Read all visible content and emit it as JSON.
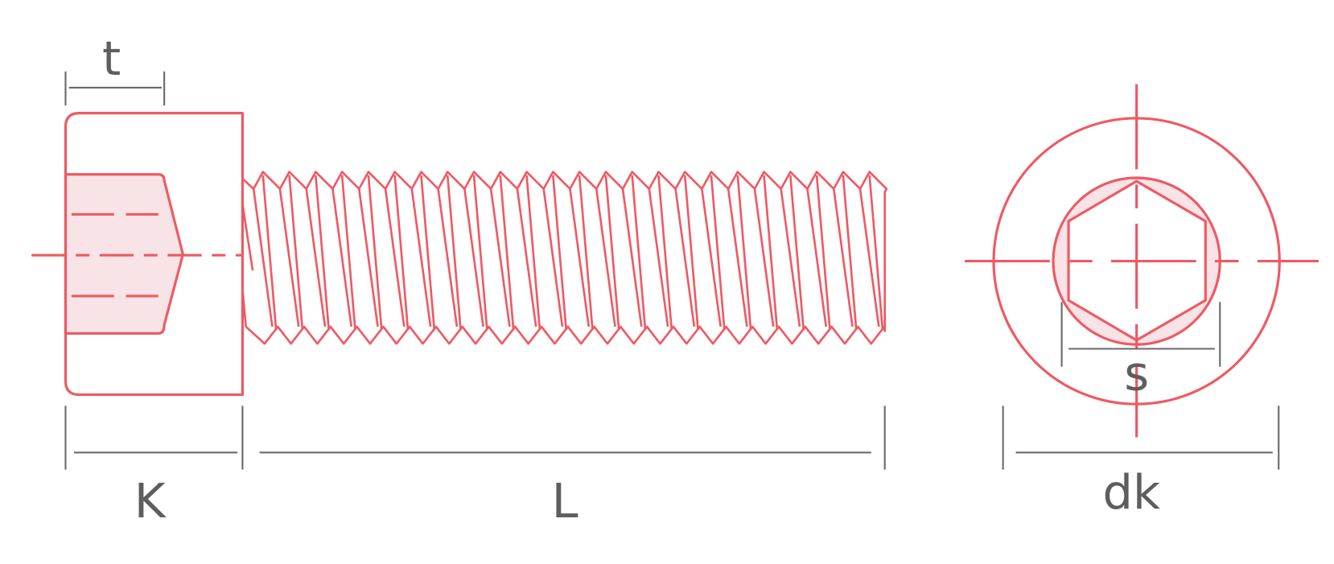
{
  "labels": {
    "t": "t",
    "K": "K",
    "L": "L",
    "s": "s",
    "dk": "dk"
  }
}
